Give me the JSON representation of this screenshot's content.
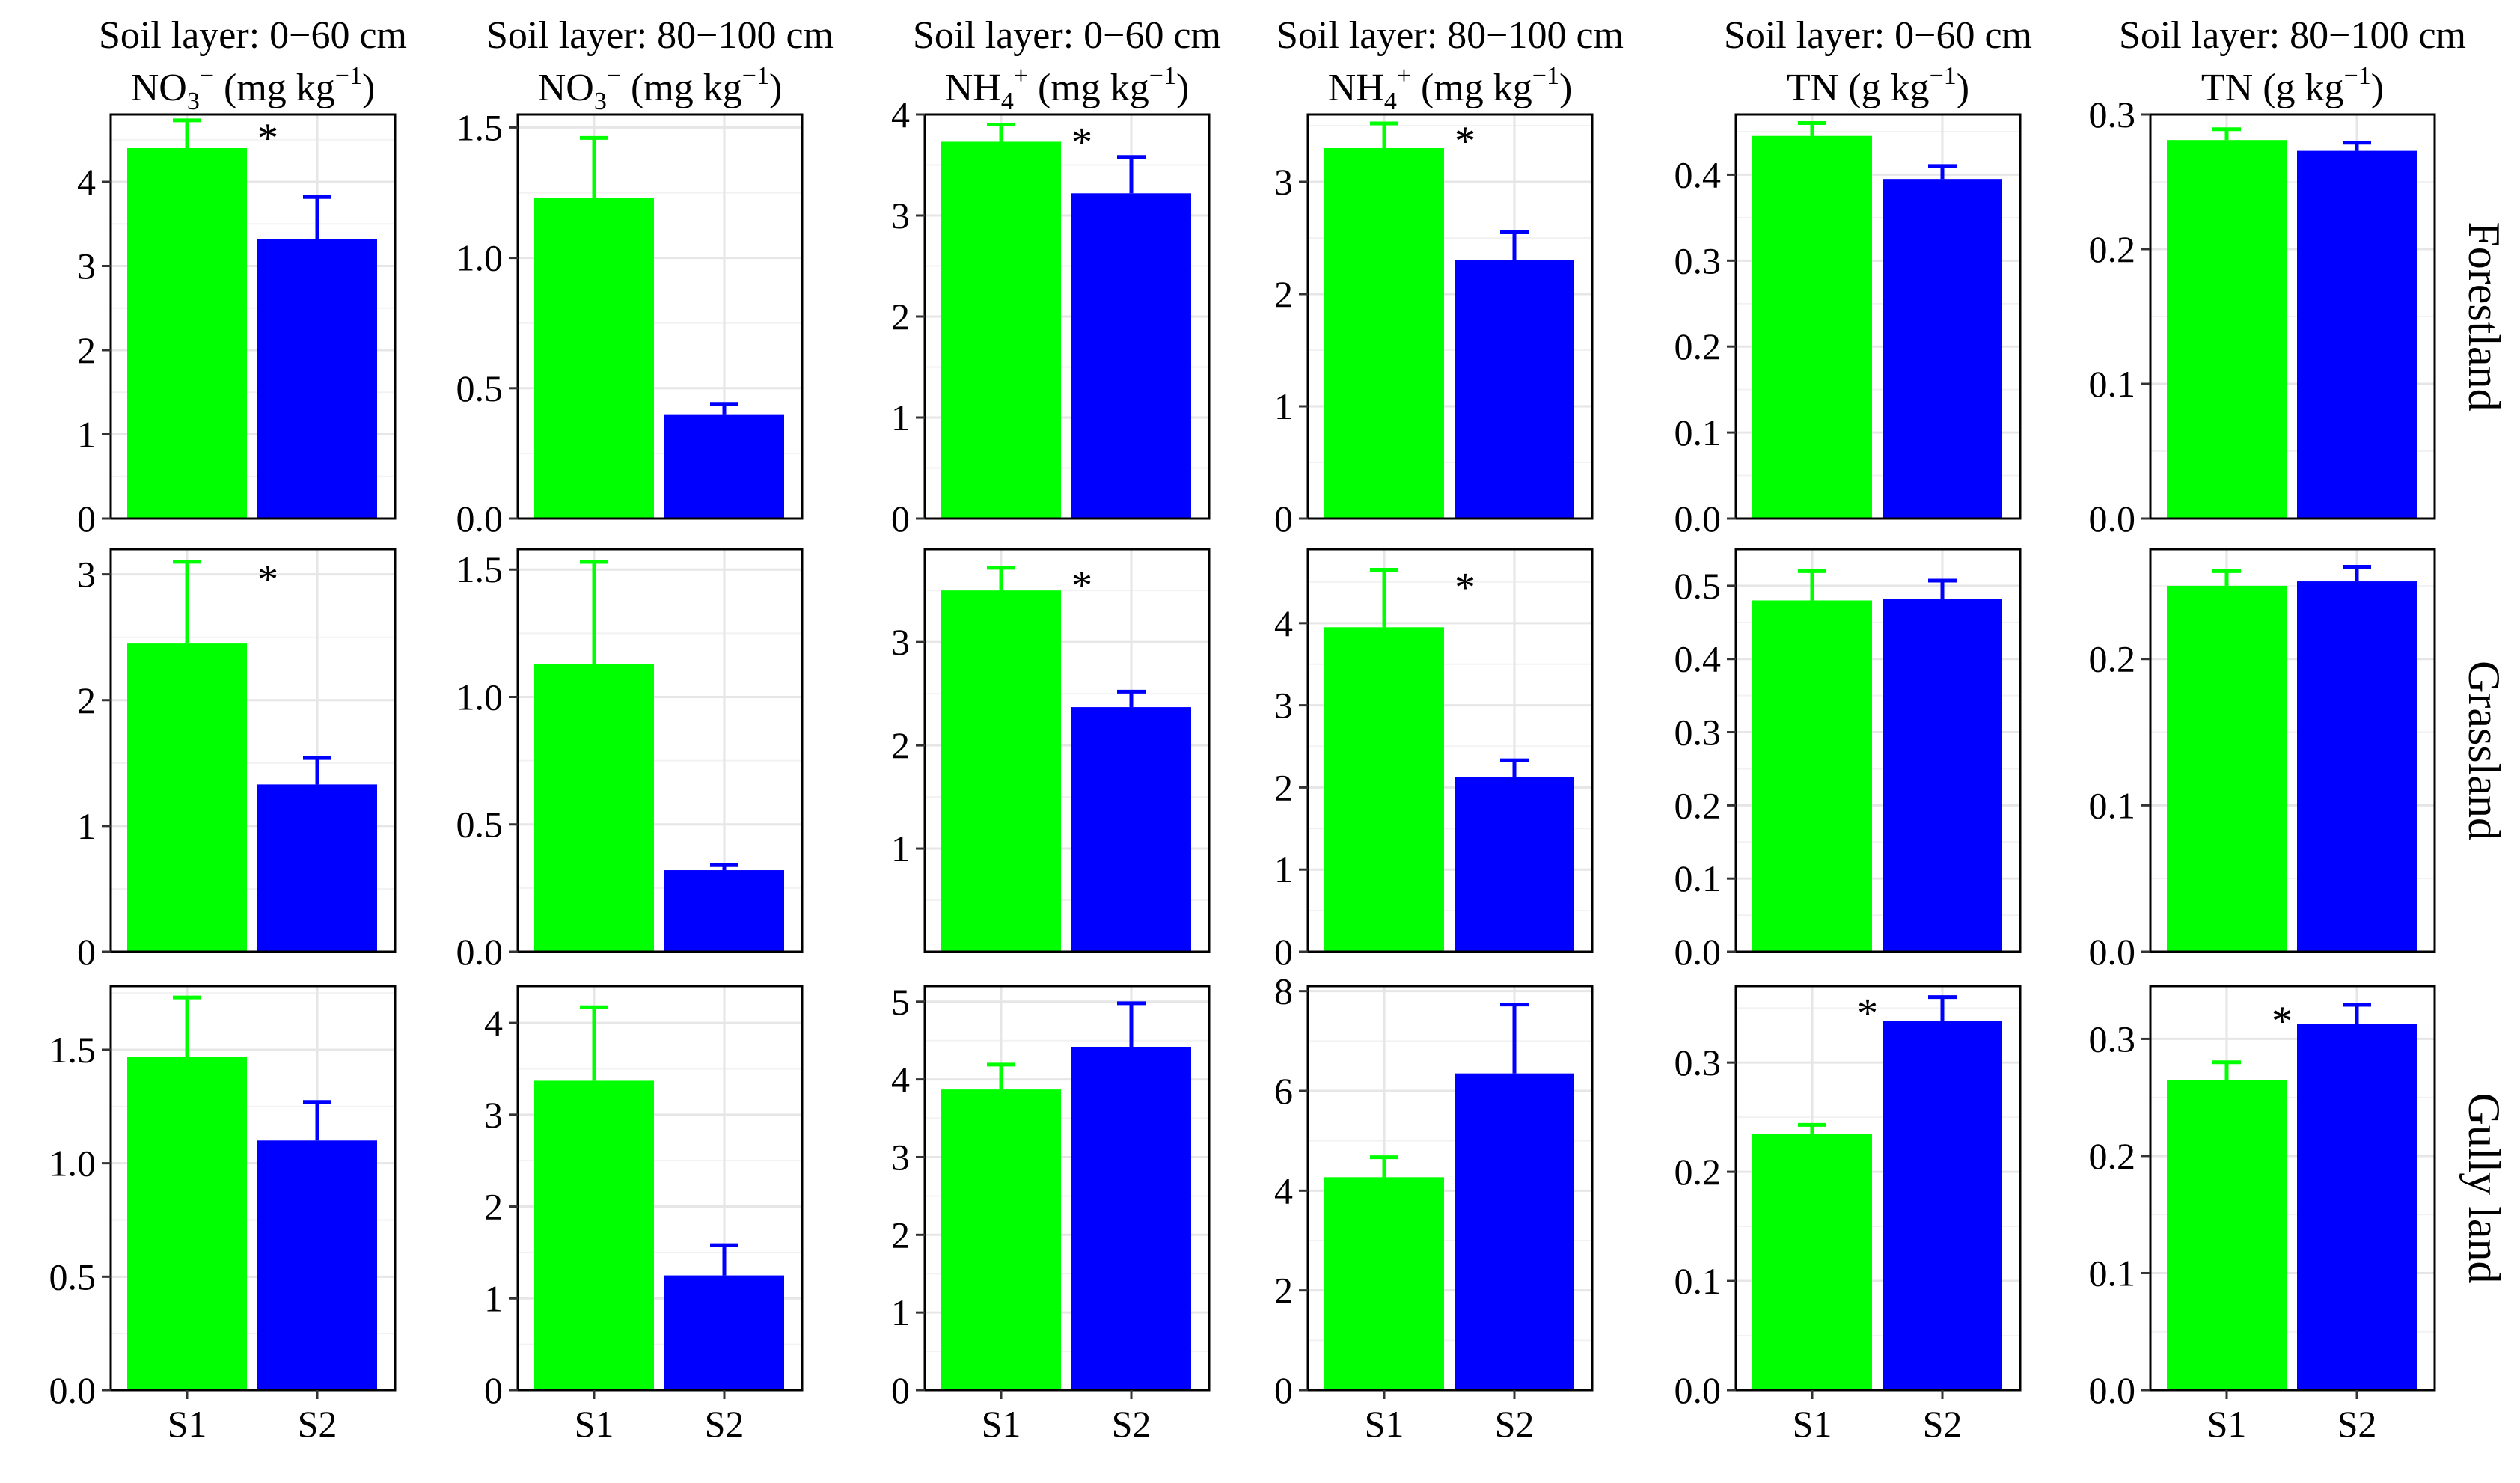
{
  "chart_data": {
    "type": "bar",
    "title": "",
    "categories": [
      "S1",
      "S2"
    ],
    "row_labels": [
      "Forestland",
      "Grassland",
      "Gully land"
    ],
    "columns": [
      {
        "layer": "Soil layer: 0−60 cm",
        "quantity": "NO3− (mg kg−1)",
        "ion": "NO",
        "sub": "3",
        "sup": "−",
        "unit": " (mg kg",
        "unit_sup": "−1",
        "close": ")"
      },
      {
        "layer": "Soil layer: 80−100 cm",
        "quantity": "NO3− (mg kg−1)",
        "ion": "NO",
        "sub": "3",
        "sup": "−",
        "unit": " (mg kg",
        "unit_sup": "−1",
        "close": ")"
      },
      {
        "layer": "Soil layer: 0−60 cm",
        "quantity": "NH4+ (mg kg−1)",
        "ion": "NH",
        "sub": "4",
        "sup": "+",
        "unit": " (mg kg",
        "unit_sup": "−1",
        "close": ")"
      },
      {
        "layer": "Soil layer: 80−100 cm",
        "quantity": "NH4+ (mg kg−1)",
        "ion": "NH",
        "sub": "4",
        "sup": "+",
        "unit": " (mg kg",
        "unit_sup": "−1",
        "close": ")"
      },
      {
        "layer": "Soil layer: 0−60 cm",
        "quantity": "TN (g kg−1)",
        "ion": "TN",
        "sub": "",
        "sup": "",
        "unit": " (g kg",
        "unit_sup": "−1",
        "close": ")"
      },
      {
        "layer": "Soil layer: 80−100 cm",
        "quantity": "TN (g kg−1)",
        "ion": "TN",
        "sub": "",
        "sup": "",
        "unit": " (g kg",
        "unit_sup": "−1",
        "close": ")"
      }
    ],
    "series_colors": {
      "S1": "#00ff00",
      "S2": "#0000ff"
    },
    "significance_mark": "*",
    "panels": [
      [
        {
          "ylim": [
            0,
            4.8
          ],
          "ticks": [
            "0",
            "1",
            "2",
            "3",
            "4"
          ],
          "tickvals": [
            0,
            1,
            2,
            3,
            4
          ],
          "values": [
            4.4,
            3.32
          ],
          "errors": [
            0.33,
            0.5
          ],
          "sig": true
        },
        {
          "ylim": [
            0,
            1.55
          ],
          "ticks": [
            "0.0",
            "0.5",
            "1.0",
            "1.5"
          ],
          "tickvals": [
            0,
            0.5,
            1.0,
            1.5
          ],
          "values": [
            1.23,
            0.4
          ],
          "errors": [
            0.23,
            0.04
          ],
          "sig": false
        },
        {
          "ylim": [
            0,
            4.0
          ],
          "ticks": [
            "0",
            "1",
            "2",
            "3",
            "4"
          ],
          "tickvals": [
            0,
            1,
            2,
            3,
            4
          ],
          "values": [
            3.73,
            3.22
          ],
          "errors": [
            0.17,
            0.36
          ],
          "sig": true
        },
        {
          "ylim": [
            0,
            3.6
          ],
          "ticks": [
            "0",
            "1",
            "2",
            "3"
          ],
          "tickvals": [
            0,
            1,
            2,
            3
          ],
          "values": [
            3.3,
            2.3
          ],
          "errors": [
            0.22,
            0.25
          ],
          "sig": true
        },
        {
          "ylim": [
            0,
            0.47
          ],
          "ticks": [
            "0.0",
            "0.1",
            "0.2",
            "0.3",
            "0.4"
          ],
          "tickvals": [
            0,
            0.1,
            0.2,
            0.3,
            0.4
          ],
          "values": [
            0.445,
            0.395
          ],
          "errors": [
            0.015,
            0.015
          ],
          "sig": false
        },
        {
          "ylim": [
            0,
            0.3
          ],
          "ticks": [
            "0.0",
            "0.1",
            "0.2",
            "0.3"
          ],
          "tickvals": [
            0,
            0.1,
            0.2,
            0.3
          ],
          "values": [
            0.281,
            0.273
          ],
          "errors": [
            0.008,
            0.006
          ],
          "sig": false
        }
      ],
      [
        {
          "ylim": [
            0,
            3.2
          ],
          "ticks": [
            "0",
            "1",
            "2",
            "3"
          ],
          "tickvals": [
            0,
            1,
            2,
            3
          ],
          "values": [
            2.45,
            1.33
          ],
          "errors": [
            0.65,
            0.21
          ],
          "sig": true
        },
        {
          "ylim": [
            0,
            1.58
          ],
          "ticks": [
            "0.0",
            "0.5",
            "1.0",
            "1.5"
          ],
          "tickvals": [
            0,
            0.5,
            1.0,
            1.5
          ],
          "values": [
            1.13,
            0.32
          ],
          "errors": [
            0.4,
            0.02
          ],
          "sig": false
        },
        {
          "ylim": [
            0,
            3.9
          ],
          "ticks": [
            "1",
            "2",
            "3"
          ],
          "tickvals": [
            1,
            2,
            3
          ],
          "values": [
            3.5,
            2.37
          ],
          "errors": [
            0.22,
            0.15
          ],
          "sig": true
        },
        {
          "ylim": [
            0,
            4.9
          ],
          "ticks": [
            "0",
            "1",
            "2",
            "3",
            "4"
          ],
          "tickvals": [
            0,
            1,
            2,
            3,
            4
          ],
          "values": [
            3.95,
            2.13
          ],
          "errors": [
            0.7,
            0.2
          ],
          "sig": true
        },
        {
          "ylim": [
            0,
            0.55
          ],
          "ticks": [
            "0.0",
            "0.1",
            "0.2",
            "0.3",
            "0.4",
            "0.5"
          ],
          "tickvals": [
            0,
            0.1,
            0.2,
            0.3,
            0.4,
            0.5
          ],
          "values": [
            0.48,
            0.482
          ],
          "errors": [
            0.04,
            0.025
          ],
          "sig": false
        },
        {
          "ylim": [
            0,
            0.275
          ],
          "ticks": [
            "0.0",
            "0.1",
            "0.2"
          ],
          "tickvals": [
            0,
            0.1,
            0.2
          ],
          "values": [
            0.25,
            0.253
          ],
          "errors": [
            0.01,
            0.01
          ],
          "sig": false
        }
      ],
      [
        {
          "ylim": [
            0,
            1.78
          ],
          "ticks": [
            "0.0",
            "0.5",
            "1.0",
            "1.5"
          ],
          "tickvals": [
            0,
            0.5,
            1.0,
            1.5
          ],
          "values": [
            1.47,
            1.1
          ],
          "errors": [
            0.26,
            0.17
          ],
          "sig": false
        },
        {
          "ylim": [
            0,
            4.4
          ],
          "ticks": [
            "0",
            "1",
            "2",
            "3",
            "4"
          ],
          "tickvals": [
            0,
            1,
            2,
            3,
            4
          ],
          "values": [
            3.37,
            1.25
          ],
          "errors": [
            0.8,
            0.33
          ],
          "sig": false
        },
        {
          "ylim": [
            0,
            5.2
          ],
          "ticks": [
            "0",
            "1",
            "2",
            "3",
            "4",
            "5"
          ],
          "tickvals": [
            0,
            1,
            2,
            3,
            4,
            5
          ],
          "values": [
            3.87,
            4.42
          ],
          "errors": [
            0.32,
            0.56
          ],
          "sig": false
        },
        {
          "ylim": [
            0,
            8.1
          ],
          "ticks": [
            "0",
            "2",
            "4",
            "6",
            "8"
          ],
          "tickvals": [
            0,
            2,
            4,
            6,
            8
          ],
          "values": [
            4.27,
            6.35
          ],
          "errors": [
            0.4,
            1.38
          ],
          "sig": false
        },
        {
          "ylim": [
            0,
            0.37
          ],
          "ticks": [
            "0.0",
            "0.1",
            "0.2",
            "0.3"
          ],
          "tickvals": [
            0,
            0.1,
            0.2,
            0.3
          ],
          "values": [
            0.235,
            0.338
          ],
          "errors": [
            0.008,
            0.022
          ],
          "sig": true
        },
        {
          "ylim": [
            0,
            0.345
          ],
          "ticks": [
            "0.0",
            "0.1",
            "0.2",
            "0.3"
          ],
          "tickvals": [
            0,
            0.1,
            0.2,
            0.3
          ],
          "values": [
            0.265,
            0.313
          ],
          "errors": [
            0.015,
            0.016
          ],
          "sig": true
        }
      ]
    ]
  }
}
